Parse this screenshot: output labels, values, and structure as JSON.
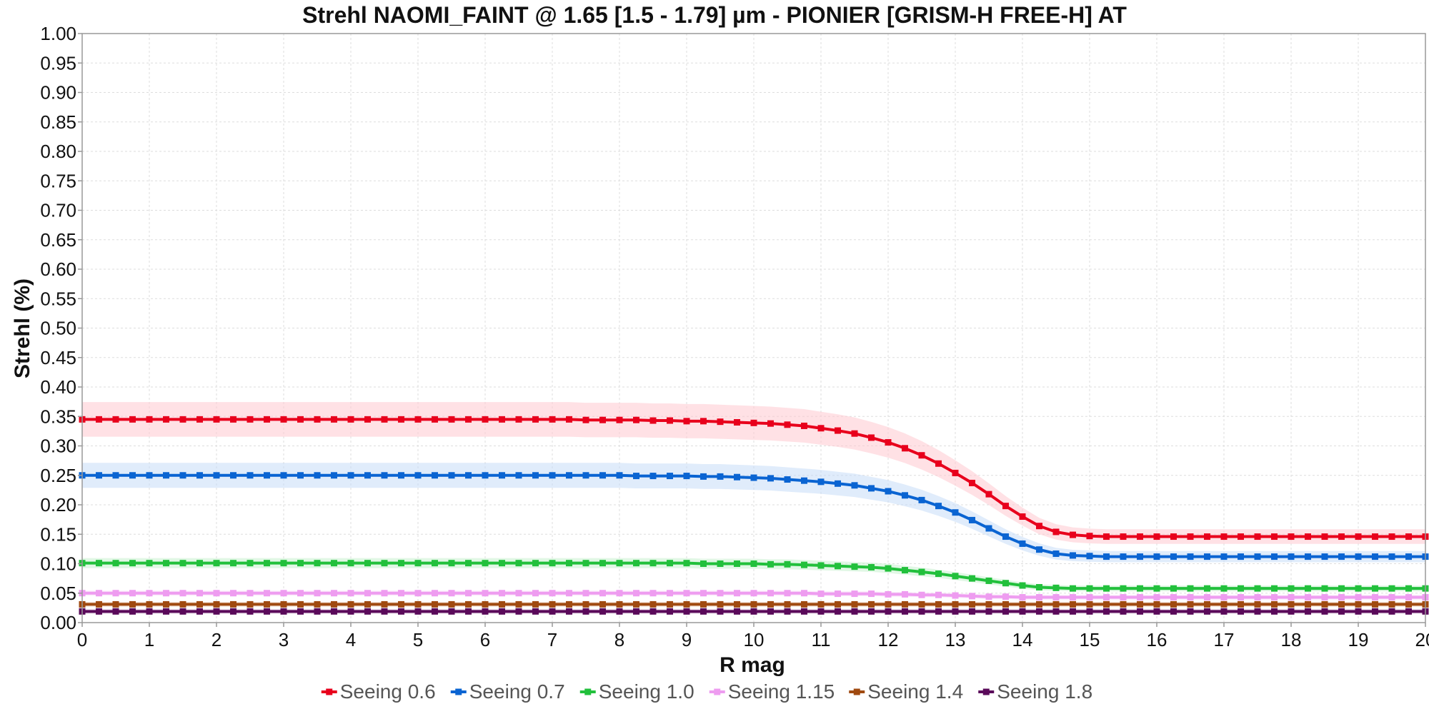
{
  "chart_data": {
    "type": "line",
    "title": "Strehl NAOMI_FAINT @ 1.65 [1.5 - 1.79] µm - PIONIER [GRISM-H FREE-H] AT",
    "xlabel": "R mag",
    "ylabel": "Strehl (%)",
    "xlim": [
      0,
      20
    ],
    "ylim": [
      0,
      1
    ],
    "x_ticks": [
      "0",
      "1",
      "2",
      "3",
      "4",
      "5",
      "6",
      "7",
      "8",
      "9",
      "10",
      "11",
      "12",
      "13",
      "14",
      "15",
      "16",
      "17",
      "18",
      "19",
      "20"
    ],
    "y_ticks": [
      "0.00",
      "0.05",
      "0.10",
      "0.15",
      "0.20",
      "0.25",
      "0.30",
      "0.35",
      "0.40",
      "0.45",
      "0.50",
      "0.55",
      "0.60",
      "0.65",
      "0.70",
      "0.75",
      "0.80",
      "0.85",
      "0.90",
      "0.95",
      "1.00"
    ],
    "grid": true,
    "legend_position": "bottom",
    "x": [
      0,
      0.25,
      0.5,
      0.75,
      1,
      1.25,
      1.5,
      1.75,
      2,
      2.25,
      2.5,
      2.75,
      3,
      3.25,
      3.5,
      3.75,
      4,
      4.25,
      4.5,
      4.75,
      5,
      5.25,
      5.5,
      5.75,
      6,
      6.25,
      6.5,
      6.75,
      7,
      7.25,
      7.5,
      7.75,
      8,
      8.25,
      8.5,
      8.75,
      9,
      9.25,
      9.5,
      9.75,
      10,
      10.25,
      10.5,
      10.75,
      11,
      11.25,
      11.5,
      11.75,
      12,
      12.25,
      12.5,
      12.75,
      13,
      13.25,
      13.5,
      13.75,
      14,
      14.25,
      14.5,
      14.75,
      15,
      15.25,
      15.5,
      15.75,
      16,
      16.25,
      16.5,
      16.75,
      17,
      17.25,
      17.5,
      17.75,
      18,
      18.25,
      18.5,
      18.75,
      19,
      19.25,
      19.5,
      19.75,
      20
    ],
    "series": [
      {
        "name": "Seeing 0.6",
        "color": "#e8001c",
        "band_color": "#ffc8d0",
        "values": [
          0.345,
          0.345,
          0.345,
          0.345,
          0.345,
          0.345,
          0.345,
          0.345,
          0.345,
          0.345,
          0.345,
          0.345,
          0.345,
          0.345,
          0.345,
          0.345,
          0.345,
          0.345,
          0.345,
          0.345,
          0.345,
          0.345,
          0.345,
          0.345,
          0.345,
          0.345,
          0.345,
          0.345,
          0.345,
          0.345,
          0.344,
          0.344,
          0.344,
          0.344,
          0.343,
          0.343,
          0.342,
          0.342,
          0.341,
          0.34,
          0.339,
          0.338,
          0.336,
          0.334,
          0.33,
          0.326,
          0.321,
          0.314,
          0.306,
          0.296,
          0.284,
          0.27,
          0.254,
          0.237,
          0.218,
          0.198,
          0.18,
          0.164,
          0.154,
          0.149,
          0.147,
          0.146,
          0.146,
          0.146,
          0.146,
          0.146,
          0.146,
          0.146,
          0.146,
          0.146,
          0.146,
          0.146,
          0.146,
          0.146,
          0.146,
          0.146,
          0.146,
          0.146,
          0.146,
          0.146,
          0.146
        ]
      },
      {
        "name": "Seeing 0.7",
        "color": "#0a64d2",
        "band_color": "#c7ddf8",
        "values": [
          0.25,
          0.25,
          0.25,
          0.25,
          0.25,
          0.25,
          0.25,
          0.25,
          0.25,
          0.25,
          0.25,
          0.25,
          0.25,
          0.25,
          0.25,
          0.25,
          0.25,
          0.25,
          0.25,
          0.25,
          0.25,
          0.25,
          0.25,
          0.25,
          0.25,
          0.25,
          0.25,
          0.25,
          0.25,
          0.25,
          0.25,
          0.25,
          0.25,
          0.249,
          0.249,
          0.249,
          0.249,
          0.248,
          0.248,
          0.247,
          0.246,
          0.245,
          0.243,
          0.241,
          0.239,
          0.236,
          0.233,
          0.228,
          0.223,
          0.216,
          0.208,
          0.198,
          0.187,
          0.174,
          0.16,
          0.146,
          0.134,
          0.124,
          0.117,
          0.114,
          0.113,
          0.112,
          0.112,
          0.112,
          0.112,
          0.112,
          0.112,
          0.112,
          0.112,
          0.112,
          0.112,
          0.112,
          0.112,
          0.112,
          0.112,
          0.112,
          0.112,
          0.112,
          0.112,
          0.112,
          0.112
        ]
      },
      {
        "name": "Seeing 1.0",
        "color": "#22c03c",
        "band_color": "#c8f0d0",
        "values": [
          0.101,
          0.101,
          0.101,
          0.101,
          0.101,
          0.101,
          0.101,
          0.101,
          0.101,
          0.101,
          0.101,
          0.101,
          0.101,
          0.101,
          0.101,
          0.101,
          0.101,
          0.101,
          0.101,
          0.101,
          0.101,
          0.101,
          0.101,
          0.101,
          0.101,
          0.101,
          0.101,
          0.101,
          0.101,
          0.101,
          0.101,
          0.101,
          0.101,
          0.101,
          0.101,
          0.101,
          0.101,
          0.1,
          0.1,
          0.1,
          0.1,
          0.099,
          0.099,
          0.098,
          0.097,
          0.096,
          0.095,
          0.094,
          0.092,
          0.089,
          0.086,
          0.083,
          0.079,
          0.075,
          0.071,
          0.067,
          0.063,
          0.06,
          0.059,
          0.058,
          0.058,
          0.058,
          0.058,
          0.058,
          0.058,
          0.058,
          0.058,
          0.058,
          0.058,
          0.058,
          0.058,
          0.058,
          0.058,
          0.058,
          0.058,
          0.058,
          0.058,
          0.058,
          0.058,
          0.058,
          0.058
        ]
      },
      {
        "name": "Seeing 1.15",
        "color": "#ee9cf0",
        "band_color": "#f8dcf8",
        "values": [
          0.05,
          0.05,
          0.05,
          0.05,
          0.05,
          0.05,
          0.05,
          0.05,
          0.05,
          0.05,
          0.05,
          0.05,
          0.05,
          0.05,
          0.05,
          0.05,
          0.05,
          0.05,
          0.05,
          0.05,
          0.05,
          0.05,
          0.05,
          0.05,
          0.05,
          0.05,
          0.05,
          0.05,
          0.05,
          0.05,
          0.05,
          0.05,
          0.05,
          0.05,
          0.05,
          0.05,
          0.05,
          0.05,
          0.05,
          0.05,
          0.05,
          0.05,
          0.05,
          0.05,
          0.049,
          0.049,
          0.049,
          0.049,
          0.048,
          0.048,
          0.047,
          0.047,
          0.046,
          0.045,
          0.044,
          0.044,
          0.043,
          0.043,
          0.043,
          0.043,
          0.043,
          0.043,
          0.043,
          0.043,
          0.043,
          0.043,
          0.043,
          0.043,
          0.043,
          0.043,
          0.043,
          0.043,
          0.043,
          0.043,
          0.043,
          0.043,
          0.043,
          0.043,
          0.043,
          0.043,
          0.043
        ]
      },
      {
        "name": "Seeing 1.4",
        "color": "#a04a10",
        "band_color": "#ecd2c0",
        "values": [
          0.031,
          0.031,
          0.031,
          0.031,
          0.031,
          0.031,
          0.031,
          0.031,
          0.031,
          0.031,
          0.031,
          0.031,
          0.031,
          0.031,
          0.031,
          0.031,
          0.031,
          0.031,
          0.031,
          0.031,
          0.031,
          0.031,
          0.031,
          0.031,
          0.031,
          0.031,
          0.031,
          0.031,
          0.031,
          0.031,
          0.031,
          0.031,
          0.031,
          0.031,
          0.031,
          0.031,
          0.031,
          0.031,
          0.031,
          0.031,
          0.031,
          0.031,
          0.031,
          0.031,
          0.031,
          0.031,
          0.031,
          0.031,
          0.031,
          0.031,
          0.031,
          0.031,
          0.031,
          0.031,
          0.031,
          0.031,
          0.031,
          0.031,
          0.031,
          0.031,
          0.031,
          0.031,
          0.031,
          0.031,
          0.031,
          0.031,
          0.031,
          0.031,
          0.031,
          0.031,
          0.031,
          0.031,
          0.031,
          0.031,
          0.031,
          0.031,
          0.031,
          0.031,
          0.031,
          0.031,
          0.031
        ]
      },
      {
        "name": "Seeing 1.8",
        "color": "#5a0a5a",
        "band_color": "#e0c8e0",
        "values": [
          0.019,
          0.019,
          0.019,
          0.019,
          0.019,
          0.019,
          0.019,
          0.019,
          0.019,
          0.019,
          0.019,
          0.019,
          0.019,
          0.019,
          0.019,
          0.019,
          0.019,
          0.019,
          0.019,
          0.019,
          0.019,
          0.019,
          0.019,
          0.019,
          0.019,
          0.019,
          0.019,
          0.019,
          0.019,
          0.019,
          0.019,
          0.019,
          0.019,
          0.019,
          0.019,
          0.019,
          0.019,
          0.019,
          0.019,
          0.019,
          0.019,
          0.019,
          0.019,
          0.019,
          0.019,
          0.019,
          0.019,
          0.019,
          0.019,
          0.019,
          0.019,
          0.019,
          0.019,
          0.019,
          0.019,
          0.019,
          0.019,
          0.019,
          0.019,
          0.019,
          0.019,
          0.019,
          0.019,
          0.019,
          0.019,
          0.019,
          0.019,
          0.019,
          0.019,
          0.019,
          0.019,
          0.019,
          0.019,
          0.019,
          0.019,
          0.019,
          0.019,
          0.019,
          0.019,
          0.019,
          0.019
        ]
      }
    ]
  }
}
